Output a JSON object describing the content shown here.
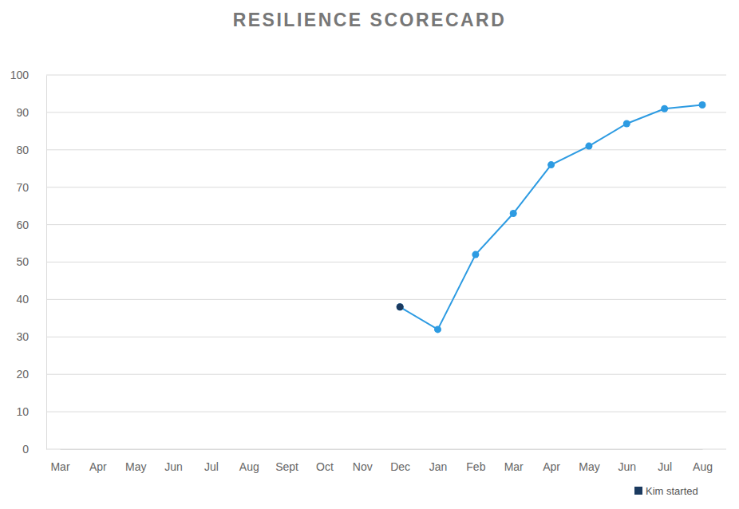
{
  "chart_data": {
    "type": "line",
    "title": "RESILIENCE SCORECARD",
    "categories": [
      "Mar",
      "Apr",
      "May",
      "Jun",
      "Jul",
      "Aug",
      "Sept",
      "Oct",
      "Nov",
      "Dec",
      "Jan",
      "Feb",
      "Mar",
      "Apr",
      "May",
      "Jun",
      "Jul",
      "Aug"
    ],
    "series": [
      {
        "color": "#2d9be2",
        "marker": "circle",
        "line_style": "solid",
        "values": [
          null,
          null,
          null,
          null,
          null,
          null,
          null,
          null,
          null,
          38,
          32,
          52,
          63,
          76,
          81,
          87,
          91,
          92
        ]
      },
      {
        "name": "Kim started",
        "color": "#1b3a5f",
        "marker": "circle",
        "values": [
          null,
          null,
          null,
          null,
          null,
          null,
          null,
          null,
          null,
          38,
          null,
          null,
          null,
          null,
          null,
          null,
          null,
          null
        ]
      }
    ],
    "ylim": [
      0,
      100
    ],
    "yticks": [
      0,
      10,
      20,
      30,
      40,
      50,
      60,
      70,
      80,
      90,
      100
    ],
    "grid": true,
    "legend": "bottom right"
  }
}
